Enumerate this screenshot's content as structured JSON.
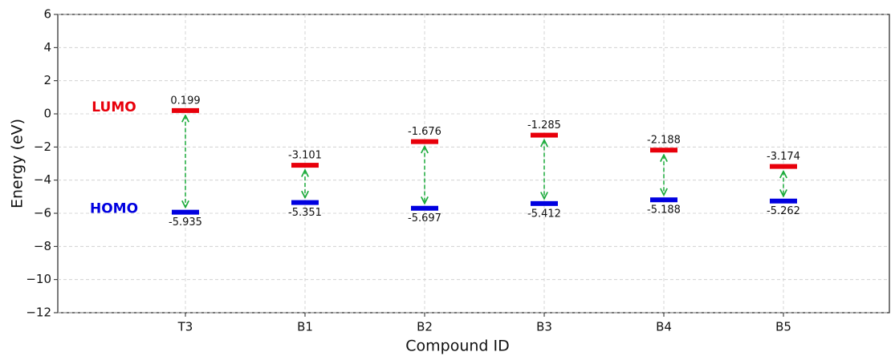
{
  "chart_data": {
    "type": "level",
    "xlabel": "Compound ID",
    "ylabel": "Energy (eV)",
    "categories": [
      "T3",
      "B1",
      "B2",
      "B3",
      "B4",
      "B5"
    ],
    "series": [
      {
        "name": "LUMO",
        "color": "#e8000b",
        "values": [
          0.199,
          -3.101,
          -1.676,
          -1.285,
          -2.188,
          -3.174
        ]
      },
      {
        "name": "HOMO",
        "color": "#0000e0",
        "values": [
          -5.935,
          -5.351,
          -5.697,
          -5.412,
          -5.188,
          -5.262
        ]
      }
    ],
    "arrow_color": "#1aaa3a",
    "ylim": [
      -12,
      6
    ],
    "yticks": [
      {
        "value": -12,
        "label": "−12"
      },
      {
        "value": -10,
        "label": "−10"
      },
      {
        "value": -8,
        "label": "−8"
      },
      {
        "value": -6,
        "label": "−6"
      },
      {
        "value": -4,
        "label": "−4"
      },
      {
        "value": -2,
        "label": "−2"
      },
      0,
      2,
      4,
      6
    ],
    "grid": true
  }
}
